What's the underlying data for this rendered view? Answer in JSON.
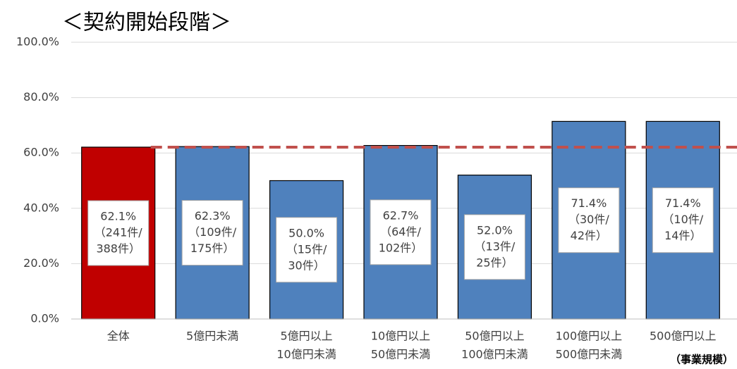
{
  "chart_data": {
    "type": "bar",
    "title": "＜契約開始段階＞",
    "categories": [
      [
        "全体"
      ],
      [
        "5億円未満"
      ],
      [
        "5億円以上",
        "10億円未満"
      ],
      [
        "10億円以上",
        "50億円未満"
      ],
      [
        "50億円以上",
        "100億円未満"
      ],
      [
        "100億円以上",
        "500億円未満"
      ],
      [
        "500億円以上"
      ]
    ],
    "values": [
      62.1,
      62.3,
      50.0,
      62.7,
      52.0,
      71.4,
      71.4
    ],
    "value_labels": [
      [
        "62.1%",
        "（241件/",
        "388件）"
      ],
      [
        "62.3%",
        "（109件/",
        "175件）"
      ],
      [
        "50.0%",
        "（15件/",
        "30件）"
      ],
      [
        "62.7%",
        "（64件/",
        "102件）"
      ],
      [
        "52.0%",
        "（13件/",
        "25件）"
      ],
      [
        "71.4%",
        "（30件/",
        "42件）"
      ],
      [
        "71.4%",
        "（10件/",
        "14件）"
      ]
    ],
    "colors": [
      "#c00000",
      "#4f81bd",
      "#4f81bd",
      "#4f81bd",
      "#4f81bd",
      "#4f81bd",
      "#4f81bd"
    ],
    "reference_color": "#c0504d",
    "x_label": "（事業規模）",
    "ylim": [
      0,
      100
    ],
    "yticks": [
      {
        "value": 0,
        "label": "0.0%"
      },
      {
        "value": 20,
        "label": "20.0%"
      },
      {
        "value": 40,
        "label": "40.0%"
      },
      {
        "value": 60,
        "label": "60.0%"
      },
      {
        "value": 80,
        "label": "80.0%"
      },
      {
        "value": 100,
        "label": "100.0%"
      }
    ],
    "grid": true
  }
}
